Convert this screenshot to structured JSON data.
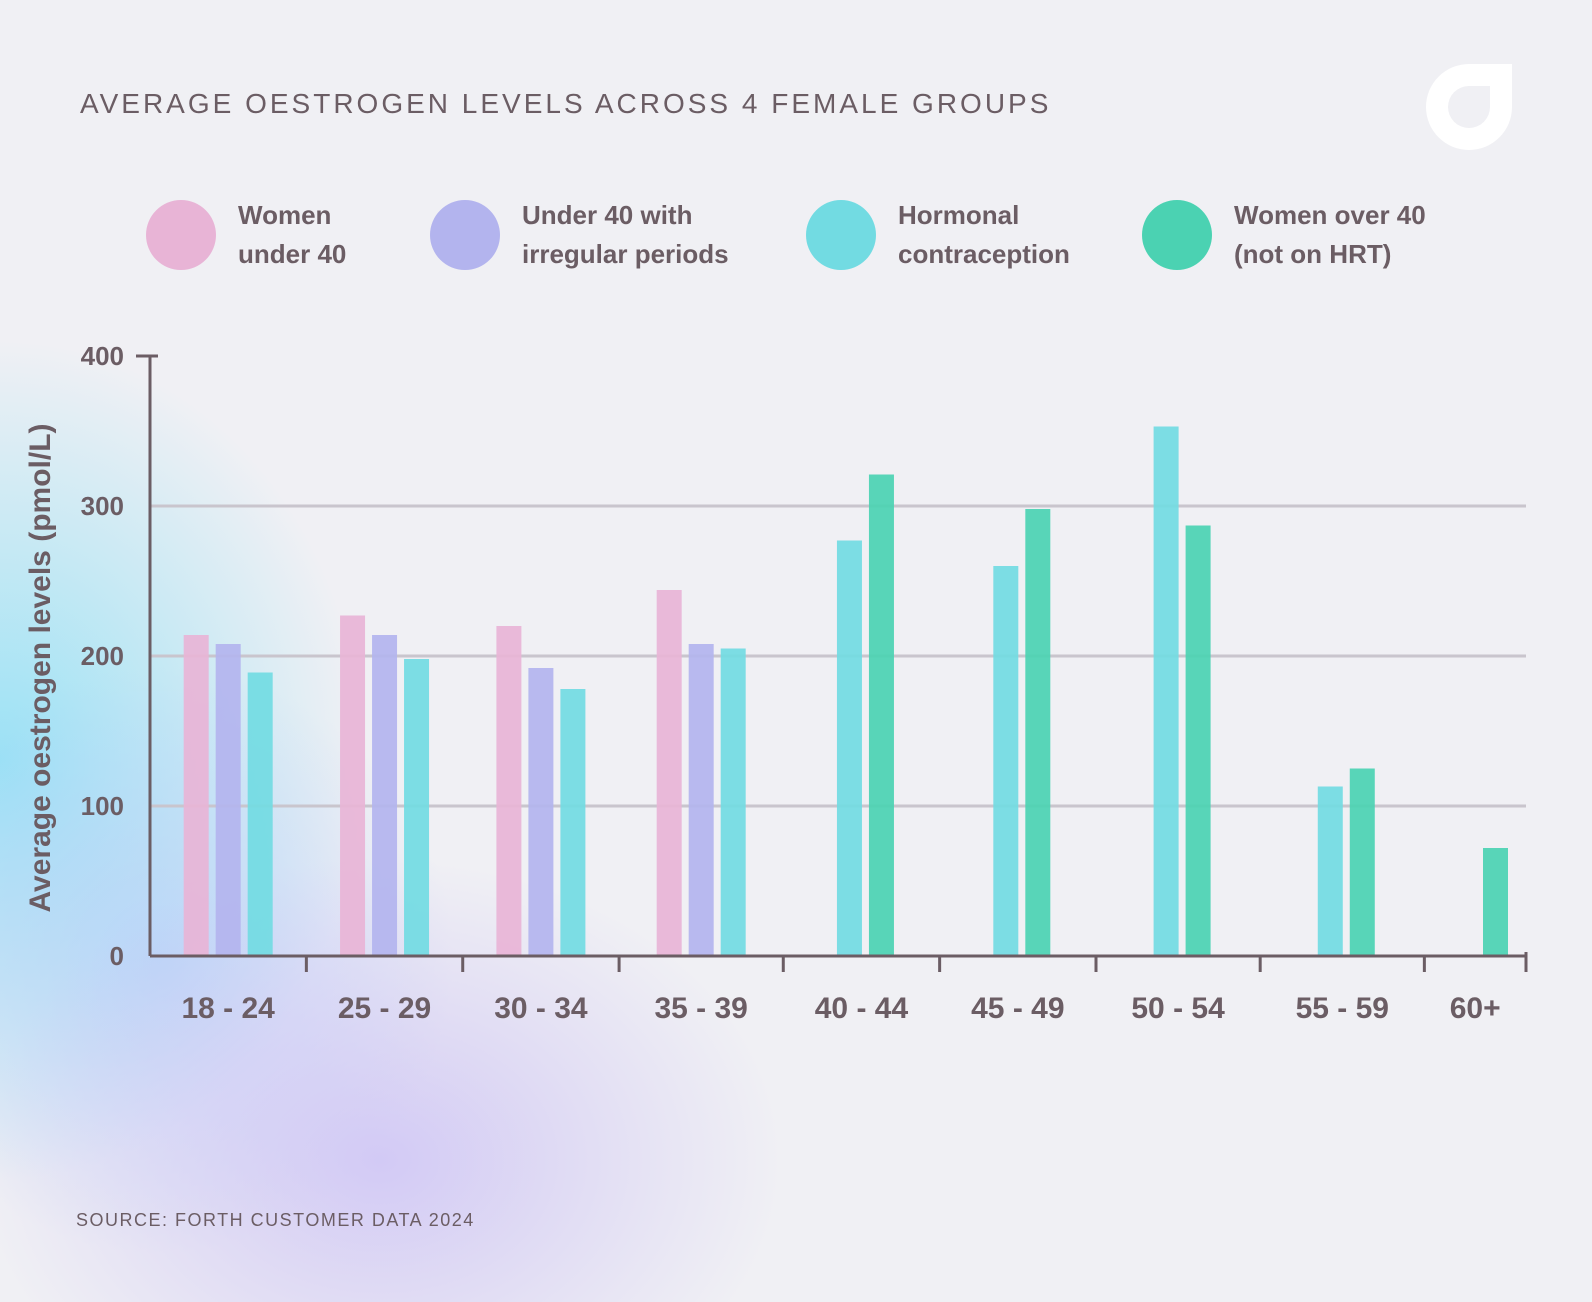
{
  "title": "AVERAGE OESTROGEN LEVELS ACROSS 4 FEMALE GROUPS",
  "source": "SOURCE: FORTH CUSTOMER DATA 2024",
  "logo_icon": "forth-logo-icon",
  "legend": [
    {
      "line1": "Women",
      "line2": "under 40",
      "color": "#e8b4d6"
    },
    {
      "line1": "Under 40 with",
      "line2": "irregular periods",
      "color": "#b3b4ee"
    },
    {
      "line1": "Hormonal",
      "line2": "contraception",
      "color": "#72dbe2"
    },
    {
      "line1": "Women over 40",
      "line2": "(not on HRT)",
      "color": "#4bd2b2"
    }
  ],
  "chart_data": {
    "type": "bar",
    "title": "AVERAGE OESTROGEN LEVELS ACROSS 4 FEMALE GROUPS",
    "xlabel": "",
    "ylabel": "Average oestrogen levels (pmol/L)",
    "ylim": [
      0,
      400
    ],
    "yticks": [
      0,
      100,
      200,
      300,
      400
    ],
    "grid": true,
    "legend_position": "top",
    "categories": [
      "18 - 24",
      "25 - 29",
      "30 - 34",
      "35 - 39",
      "40 - 44",
      "45 - 49",
      "50 - 54",
      "55 - 59",
      "60+"
    ],
    "series": [
      {
        "name": "Women under 40",
        "color": "#e8b4d6",
        "values": [
          214,
          227,
          220,
          244,
          null,
          null,
          null,
          null,
          null
        ]
      },
      {
        "name": "Under 40 with irregular periods",
        "color": "#b3b4ee",
        "values": [
          208,
          214,
          192,
          208,
          null,
          null,
          null,
          null,
          null
        ]
      },
      {
        "name": "Hormonal contraception",
        "color": "#72dbe2",
        "values": [
          189,
          198,
          178,
          205,
          277,
          260,
          353,
          113,
          null
        ]
      },
      {
        "name": "Women over 40 (not on HRT)",
        "color": "#4bd2b2",
        "values": [
          null,
          null,
          null,
          null,
          321,
          298,
          287,
          125,
          72
        ]
      }
    ]
  }
}
